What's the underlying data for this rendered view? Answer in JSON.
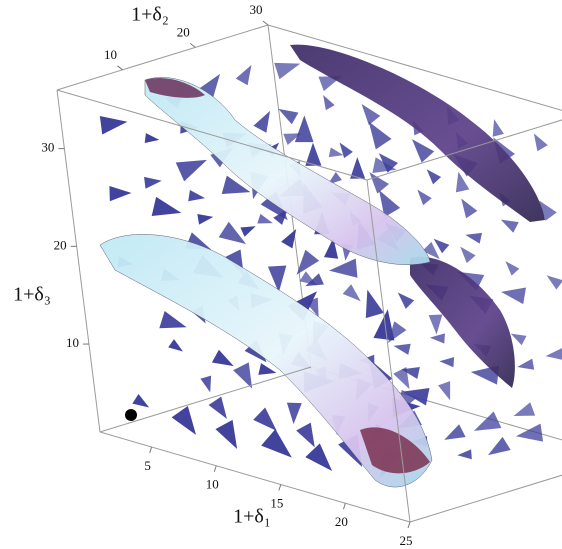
{
  "chart_data": {
    "type": "vector-field-3d",
    "x_label": "1+δ₁",
    "y_label": "1+δ₂",
    "z_label": "1+δ₃",
    "xlim": [
      1,
      25
    ],
    "xticks": [
      5,
      10,
      15,
      20,
      25
    ],
    "ylim": [
      1,
      30
    ],
    "yticks": [
      10,
      20,
      30
    ],
    "zlim": [
      1,
      36
    ],
    "zticks": [
      10,
      20,
      30
    ]
  }
}
